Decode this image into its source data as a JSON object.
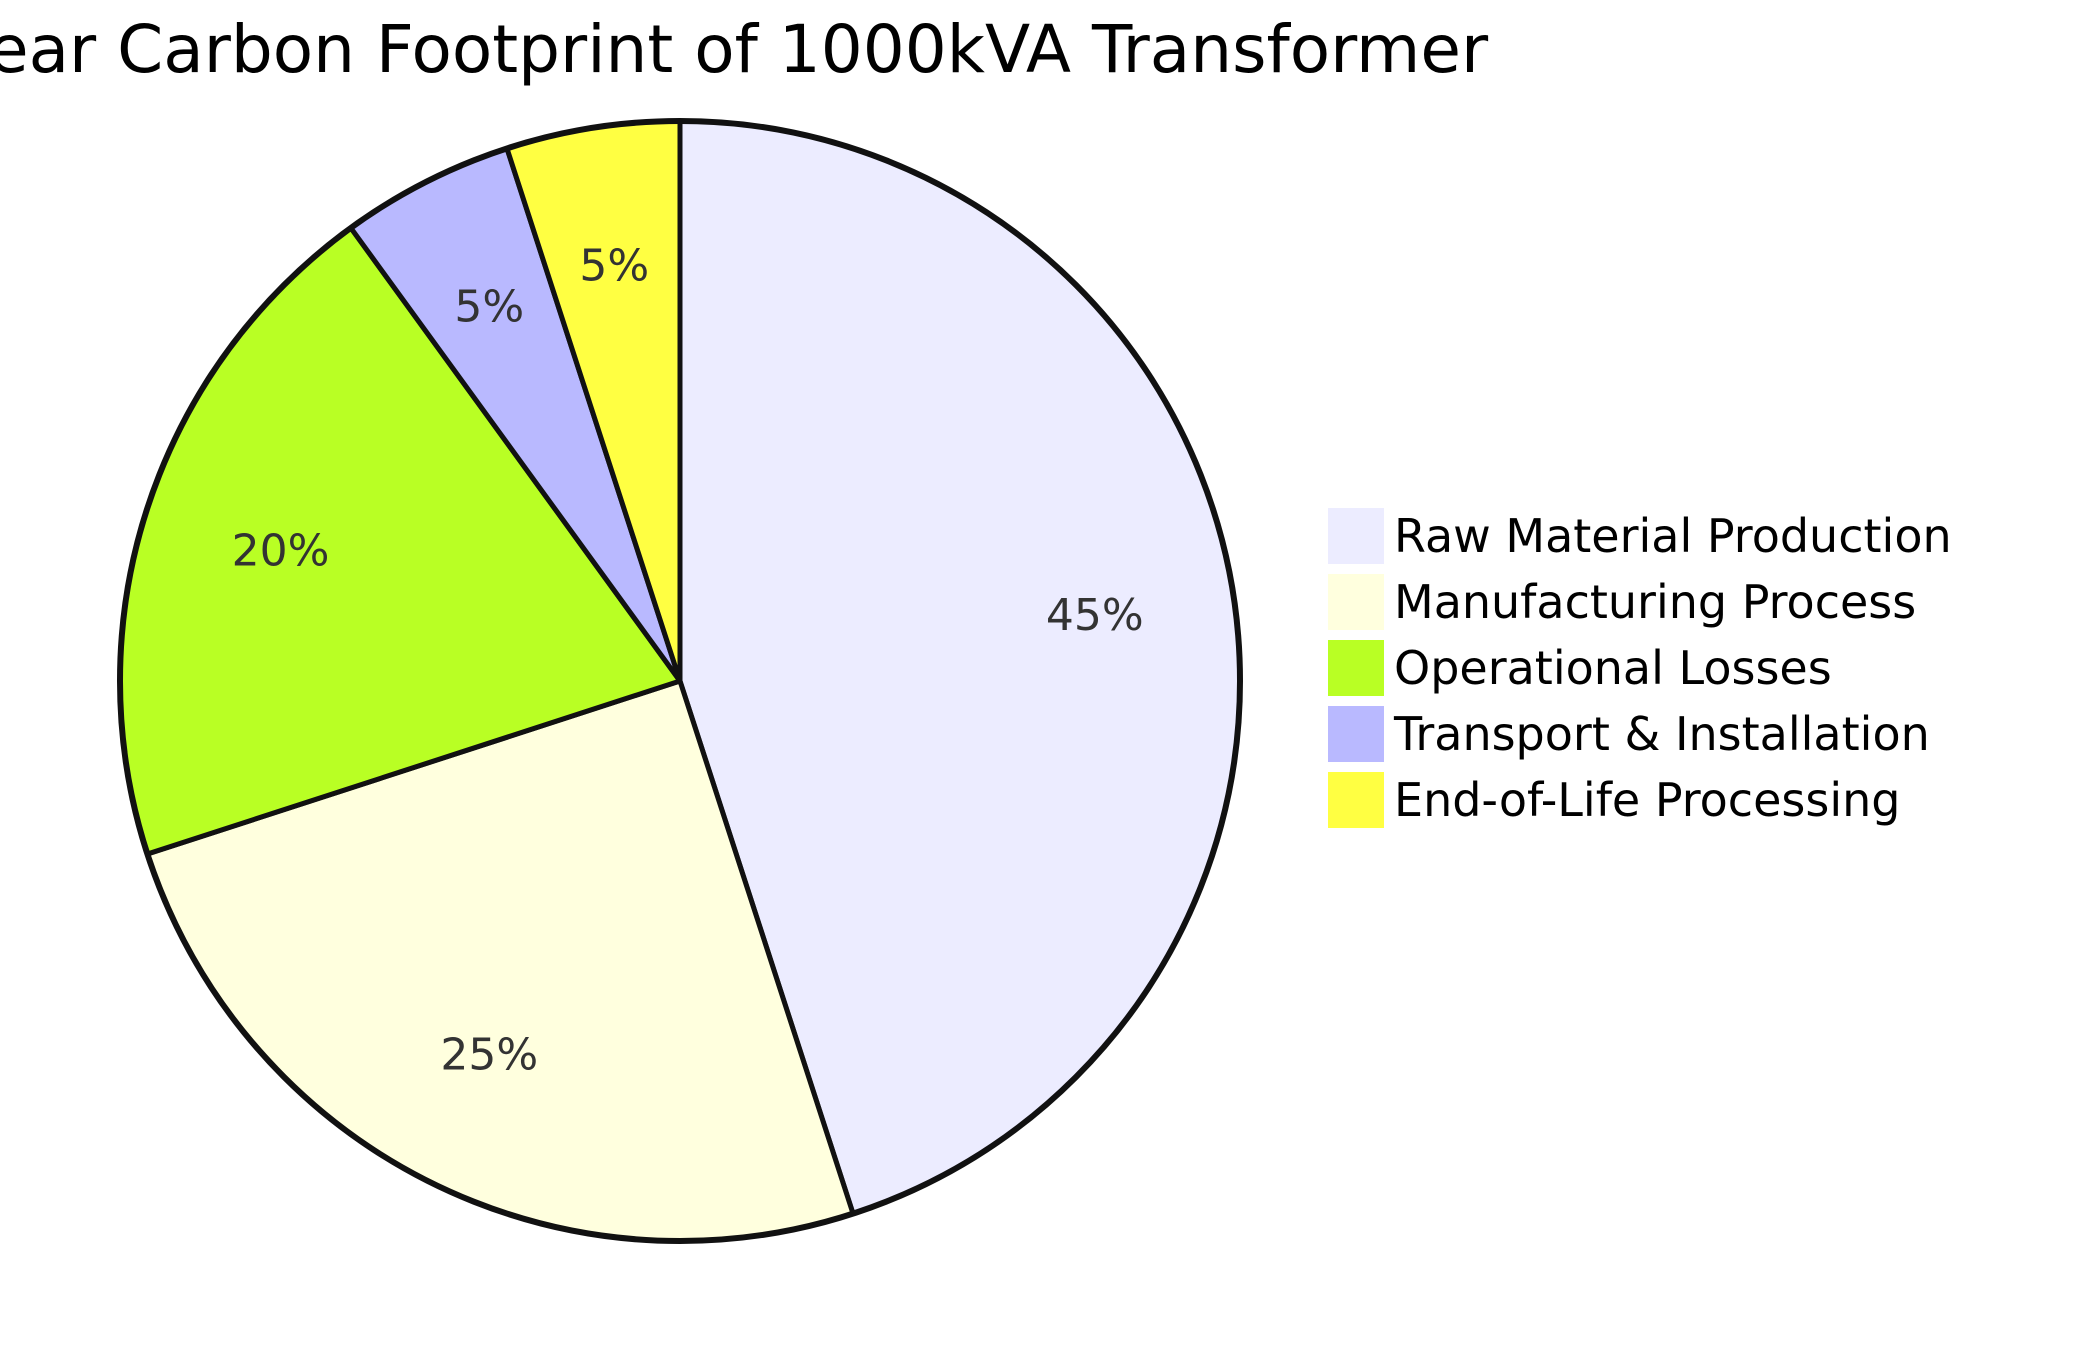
{
  "chart_data": {
    "type": "pie",
    "title": "ear Carbon Footprint of 1000kVA Transformer",
    "categories": [
      "Raw Material Production",
      "Manufacturing Process",
      "Operational Losses",
      "Transport & Installation",
      "End-of-Life Processing"
    ],
    "values": [
      45,
      25,
      20,
      5,
      5
    ],
    "slice_labels": [
      "45%",
      "25%",
      "20%",
      "5%",
      "5%"
    ],
    "colors": [
      "#ececff",
      "#ffffde",
      "#b9ff24",
      "#b9b9ff",
      "#ffff42"
    ],
    "legend_placement": "right",
    "start_angle": "12 o'clock",
    "direction": "clockwise"
  }
}
